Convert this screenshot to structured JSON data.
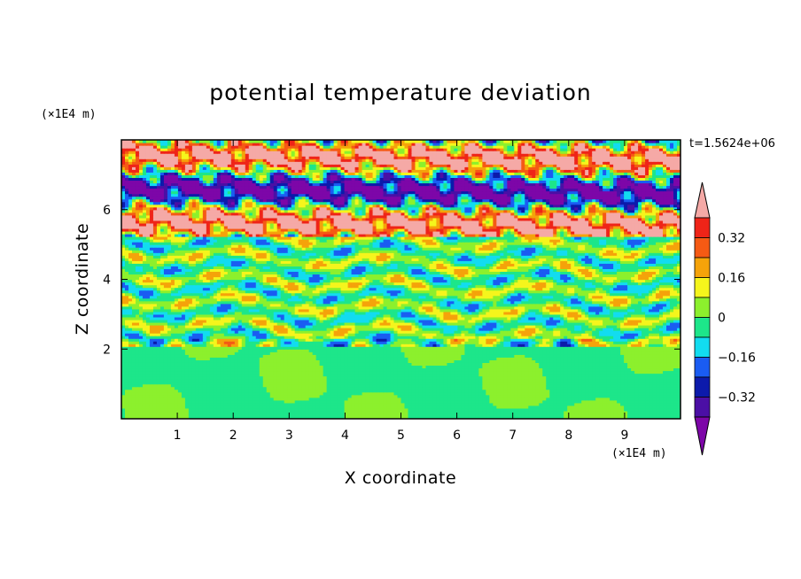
{
  "chart_data": {
    "type": "heatmap",
    "title": "potential temperature deviation",
    "xlabel": "X coordinate",
    "ylabel": "Z coordinate",
    "x_unit": "(×1E4 m)",
    "y_unit": "(×1E4 m)",
    "time_label": "t=1.5624e+06",
    "xlim": [
      0,
      10
    ],
    "ylim": [
      0,
      8
    ],
    "x_ticks": [
      1,
      2,
      3,
      4,
      5,
      6,
      7,
      8,
      9
    ],
    "x_tick_labels": [
      "1",
      "2",
      "3",
      "4",
      "5",
      "6",
      "7",
      "8",
      "9"
    ],
    "y_ticks": [
      2,
      4,
      6
    ],
    "y_tick_labels": [
      "2",
      "4",
      "6"
    ],
    "colorbar": {
      "levels": [
        -0.4,
        -0.32,
        -0.24,
        -0.16,
        -0.08,
        0,
        0.08,
        0.16,
        0.24,
        0.32,
        0.4
      ],
      "colors": [
        "#7d06a8",
        "#4b0fa5",
        "#0c1aab",
        "#1a5cf2",
        "#12dcf0",
        "#1de68a",
        "#8cf02d",
        "#f5f51c",
        "#f5a30a",
        "#f55a14",
        "#ef2418",
        "#f5a9a6"
      ],
      "tick_values": [
        -0.32,
        -0.16,
        0,
        0.16,
        0.32
      ],
      "tick_labels": [
        "−0.32",
        "−0.16",
        "0",
        "0.16",
        "0.32"
      ],
      "extend": "both"
    },
    "layers": [
      {
        "z_range": [
          0,
          2.05
        ],
        "description": "near-uniform field between -0.08 and 0.08"
      },
      {
        "z_range": [
          2.05,
          5.2
        ],
        "description": "banded wave field, values mostly between -0.24 and 0.24"
      },
      {
        "z_range": [
          5.2,
          8.0
        ],
        "description": "strong alternating layers, values beyond ±0.4"
      }
    ]
  }
}
